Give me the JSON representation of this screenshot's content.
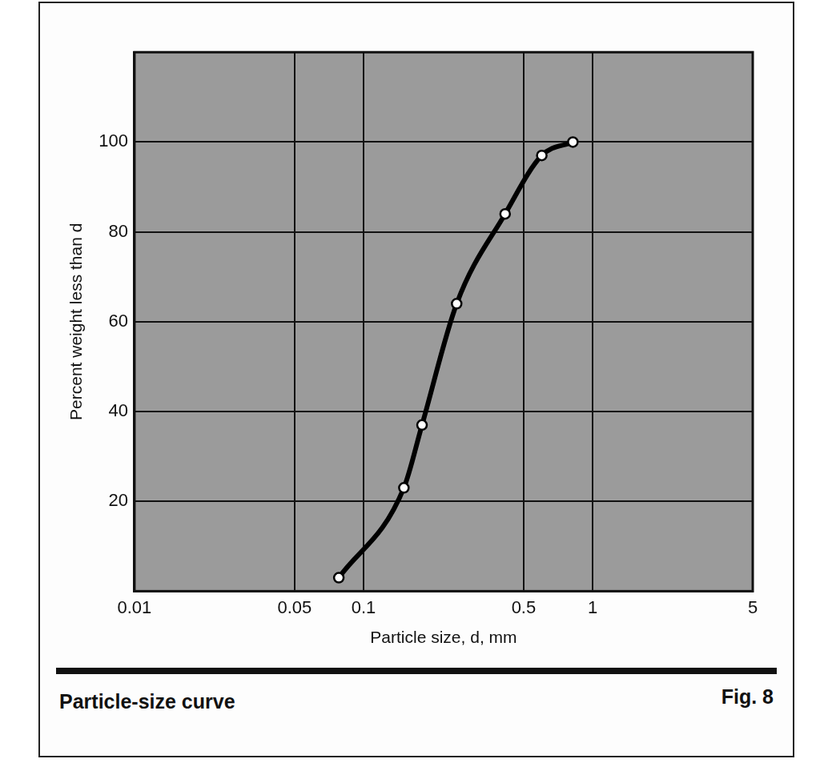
{
  "chart_data": {
    "type": "line",
    "title": "Particle-size curve",
    "annotation": "Fig. 8",
    "xlabel": "Particle size, d, mm",
    "ylabel": "Percent weight less than d",
    "x": [
      0.078,
      0.15,
      0.18,
      0.255,
      0.415,
      0.6,
      0.82
    ],
    "values": [
      3,
      23,
      37,
      64,
      84,
      97,
      100
    ],
    "color": "#000000",
    "marker": "circle",
    "log": "x",
    "xlim": [
      0.01,
      5
    ],
    "xticks": [
      0.01,
      0.05,
      0.1,
      0.5,
      1,
      5
    ],
    "ylim": [
      0,
      120
    ],
    "yticks": [
      20,
      40,
      60,
      80,
      100
    ],
    "grid": true
  }
}
